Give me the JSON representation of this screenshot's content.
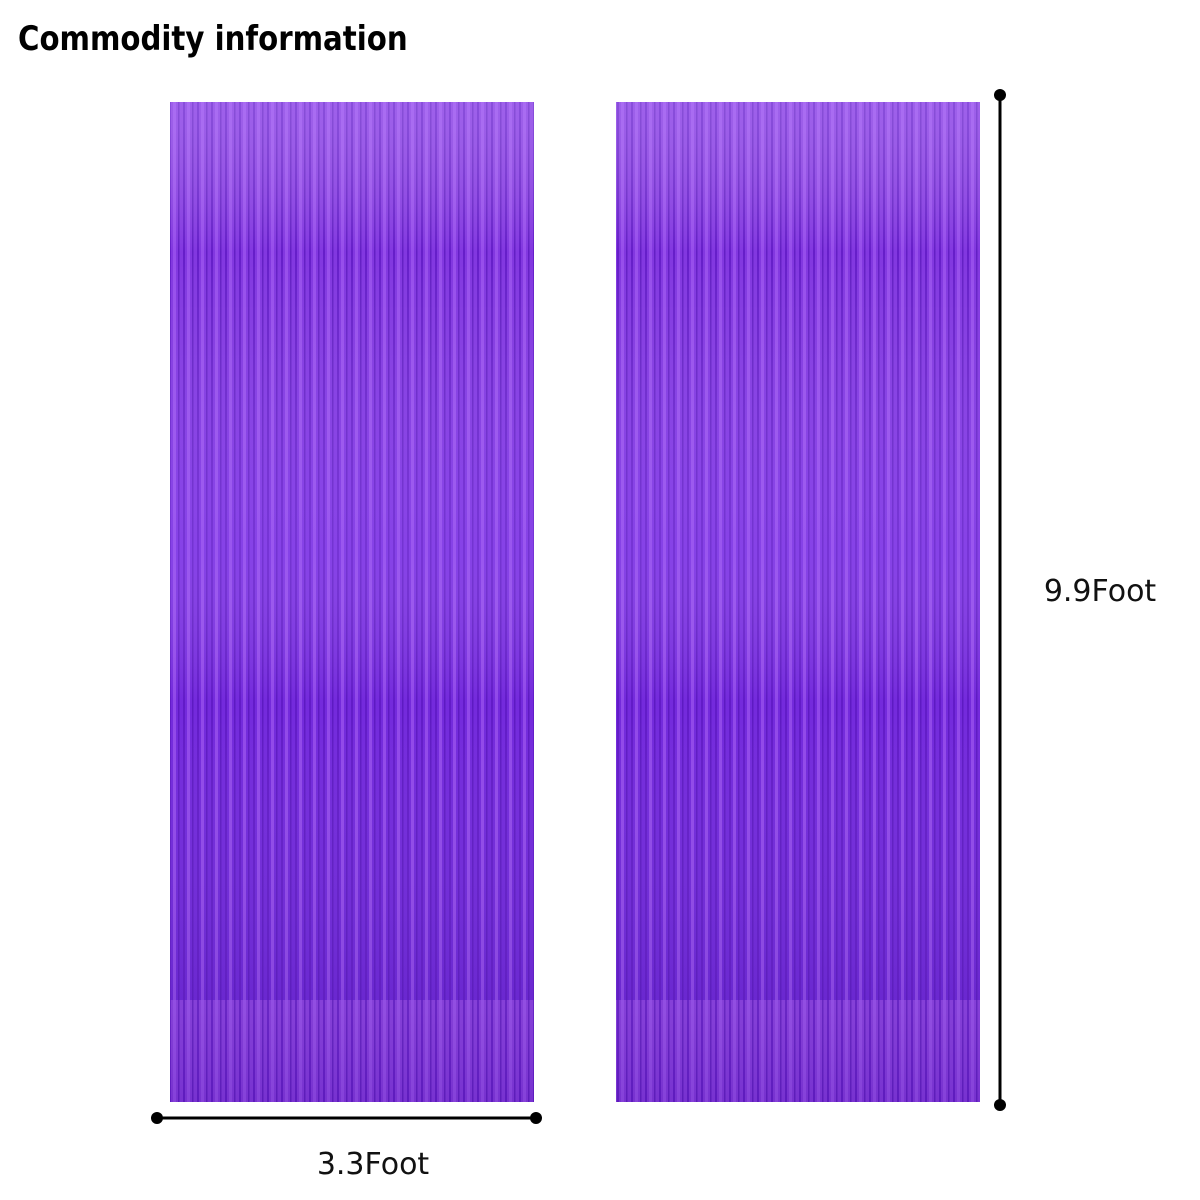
{
  "header": {
    "title": "Commodity information"
  },
  "dimensions": {
    "width": "3.3Foot",
    "height": "9.9Foot"
  }
}
